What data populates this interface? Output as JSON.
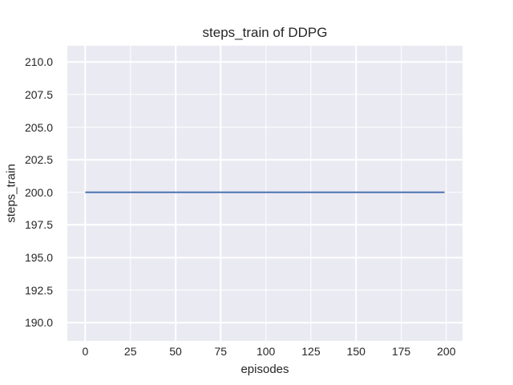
{
  "chart_data": {
    "type": "line",
    "title": "steps_train of DDPG",
    "xlabel": "episodes",
    "ylabel": "steps_train",
    "xlim": [
      -9.95,
      208.95
    ],
    "ylim": [
      188.6,
      211.25
    ],
    "xticks": [
      0,
      25,
      50,
      75,
      100,
      125,
      150,
      175,
      200
    ],
    "xtick_labels": [
      "0",
      "25",
      "50",
      "75",
      "100",
      "125",
      "150",
      "175",
      "200"
    ],
    "yticks": [
      190.0,
      192.5,
      195.0,
      197.5,
      200.0,
      202.5,
      205.0,
      207.5,
      210.0
    ],
    "ytick_labels": [
      "190.0",
      "192.5",
      "195.0",
      "197.5",
      "200.0",
      "202.5",
      "205.0",
      "207.5",
      "210.0"
    ],
    "grid": true,
    "legend": "none",
    "style": "seaborn-darkgrid",
    "colors": {
      "figure_bg": "#ffffff",
      "axes_bg": "#eaeaf2",
      "grid": "#ffffff",
      "line": "#4c72b0",
      "text": "#262626"
    },
    "series": [
      {
        "name": "steps_train",
        "points": [
          {
            "x": 0,
            "y": 200
          },
          {
            "x": 199,
            "y": 200
          }
        ],
        "description": "constant value 200 for every episode 0 through 199"
      }
    ]
  }
}
